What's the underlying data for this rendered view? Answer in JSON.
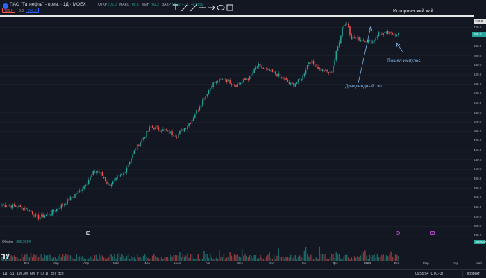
{
  "header": {
    "symbol": "ПАО \"Татнефть\" - прив. · 1Д · MOEX",
    "ohlc": [
      {
        "k": "ОТКР",
        "v": "706.0"
      },
      {
        "k": "МАКС",
        "v": "709.8"
      },
      {
        "k": "МИН",
        "v": "702.2"
      },
      {
        "k": "ЗАКР",
        "v": "706.0"
      },
      {
        "k": "",
        "v": "+1.1 (+0.16%)"
      }
    ],
    "bid": "706.0",
    "spread": "0.0",
    "ask": "706.0"
  },
  "toolbar": {
    "tools": [
      "text-tool-icon",
      "brush-tool-icon",
      "pen-tool-icon",
      "horizontal-line-icon",
      "arrow-tool-icon",
      "ellipse-tool-icon",
      "rectangle-tool-icon"
    ]
  },
  "price_scale": {
    "currency": "RUB",
    "labels": [
      "720.0",
      "700.0",
      "680.0",
      "660.0",
      "640.0",
      "620.0",
      "600.0",
      "580.0",
      "560.0",
      "540.0",
      "520.0",
      "500.0",
      "480.0",
      "460.0",
      "440.0",
      "420.0",
      "400.0",
      "380.0",
      "360.0",
      "340.0",
      "320.0",
      "300.0",
      "280.0"
    ],
    "current_price": "706.0",
    "historic_high_label": "740.0"
  },
  "annotations": {
    "historic_high": "Исторический хай",
    "dividend_gap": "Дивидендный гэп",
    "impulse": "Пошел импульс"
  },
  "markers": {
    "earnings": "E",
    "dividend": "D",
    "split": "E"
  },
  "volume": {
    "label": "Объём",
    "value": "386.926K",
    "axis_value": "386.926K"
  },
  "time_axis": {
    "labels": [
      "Фев",
      "Мар",
      "Апр",
      "Май",
      "Июн",
      "Июл",
      "Авг",
      "Сен",
      "Окт",
      "Ноя",
      "Дек",
      "2024",
      "Фев",
      "Мар",
      "Апр",
      "Май"
    ]
  },
  "bottom": {
    "periods": [
      "1Д",
      "5Д",
      "1М",
      "3М",
      "6М",
      "YTD",
      "1Г",
      "5Л",
      "Все"
    ],
    "clock": "09:55:54 (UTC+3)",
    "correction": "коррект."
  },
  "colors": {
    "up": "#26a69a",
    "down": "#ef5350",
    "background": "#131722",
    "annotation": "#7fb2e6"
  },
  "chart_data": {
    "type": "candlestick",
    "ylim": [
      280,
      740
    ],
    "anchors": [
      {
        "t": 0.0,
        "p": 346
      },
      {
        "t": 0.035,
        "p": 342
      },
      {
        "t": 0.065,
        "p": 336
      },
      {
        "t": 0.09,
        "p": 318
      },
      {
        "t": 0.12,
        "p": 326
      },
      {
        "t": 0.16,
        "p": 350
      },
      {
        "t": 0.2,
        "p": 378
      },
      {
        "t": 0.235,
        "p": 418
      },
      {
        "t": 0.25,
        "p": 410
      },
      {
        "t": 0.27,
        "p": 386
      },
      {
        "t": 0.305,
        "p": 410
      },
      {
        "t": 0.34,
        "p": 468
      },
      {
        "t": 0.375,
        "p": 510
      },
      {
        "t": 0.41,
        "p": 502
      },
      {
        "t": 0.44,
        "p": 492
      },
      {
        "t": 0.475,
        "p": 520
      },
      {
        "t": 0.505,
        "p": 565
      },
      {
        "t": 0.53,
        "p": 600
      },
      {
        "t": 0.56,
        "p": 612
      },
      {
        "t": 0.59,
        "p": 598
      },
      {
        "t": 0.625,
        "p": 615
      },
      {
        "t": 0.645,
        "p": 640
      },
      {
        "t": 0.665,
        "p": 630
      },
      {
        "t": 0.695,
        "p": 620
      },
      {
        "t": 0.73,
        "p": 598
      },
      {
        "t": 0.755,
        "p": 610
      },
      {
        "t": 0.775,
        "p": 650
      },
      {
        "t": 0.805,
        "p": 630
      },
      {
        "t": 0.83,
        "p": 623
      },
      {
        "t": 0.85,
        "p": 690
      },
      {
        "t": 0.86,
        "p": 725
      },
      {
        "t": 0.872,
        "p": 728
      },
      {
        "t": 0.88,
        "p": 700
      },
      {
        "t": 0.915,
        "p": 693
      },
      {
        "t": 0.935,
        "p": 690
      },
      {
        "t": 0.95,
        "p": 708
      },
      {
        "t": 1.0,
        "p": 706
      }
    ]
  }
}
